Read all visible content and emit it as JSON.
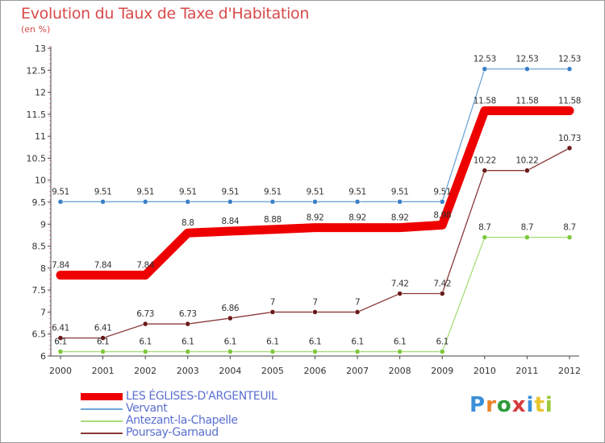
{
  "title": "Evolution du Taux de Taxe d'Habitation",
  "subtitle": "(en %)",
  "logo": {
    "text": "Proxiti",
    "colors": [
      "#3a8fd8",
      "#e8852c",
      "#2f9a3c",
      "#d83a3a",
      "#3a8fd8",
      "#e8c52c",
      "#9ac83a"
    ]
  },
  "chart_data": {
    "type": "line",
    "title": "Evolution du Taux de Taxe d'Habitation",
    "ylabel": "(en %)",
    "xlabel": "",
    "x": [
      "2000",
      "2001",
      "2002",
      "2003",
      "2004",
      "2005",
      "2006",
      "2007",
      "2008",
      "2009",
      "2010",
      "2011",
      "2012"
    ],
    "ylim": [
      6,
      13
    ],
    "yticks": [
      "6",
      "6.5",
      "7",
      "7.5",
      "8",
      "8.5",
      "9",
      "9.5",
      "10",
      "10.5",
      "11",
      "11.5",
      "12",
      "12.5",
      "13"
    ],
    "grid": false,
    "legend_position": "bottom-left",
    "series": [
      {
        "name": "LES ÉGLISES-D'ARGENTEUIL",
        "color": "#ee0000",
        "style": "thick",
        "values": [
          7.84,
          7.84,
          7.84,
          8.8,
          8.84,
          8.88,
          8.92,
          8.92,
          8.92,
          8.98,
          11.58,
          11.58,
          11.58
        ],
        "labels": [
          "7.84",
          "7.84",
          "7.84",
          "8.8",
          "8.84",
          "8.88",
          "8.92",
          "8.92",
          "8.92",
          "8.98",
          "11.58",
          "11.58",
          "11.58"
        ]
      },
      {
        "name": "Vervant",
        "color": "#6ea6d8",
        "marker": "#3a80c8",
        "style": "thin",
        "values": [
          9.51,
          9.51,
          9.51,
          9.51,
          9.51,
          9.51,
          9.51,
          9.51,
          9.51,
          9.51,
          12.53,
          12.53,
          12.53
        ],
        "labels": [
          "9.51",
          "9.51",
          "9.51",
          "9.51",
          "9.51",
          "9.51",
          "9.51",
          "9.51",
          "9.51",
          "9.51",
          "12.53",
          "12.53",
          "12.53"
        ]
      },
      {
        "name": "Antezant-la-Chapelle",
        "color": "#a8dc78",
        "marker": "#7cc83a",
        "style": "thin",
        "values": [
          6.1,
          6.1,
          6.1,
          6.1,
          6.1,
          6.1,
          6.1,
          6.1,
          6.1,
          6.1,
          8.7,
          8.7,
          8.7
        ],
        "labels": [
          "6.1",
          "6.1",
          "6.1",
          "6.1",
          "6.1",
          "6.1",
          "6.1",
          "6.1",
          "6.1",
          "6.1",
          "8.7",
          "8.7",
          "8.7"
        ]
      },
      {
        "name": "Poursay-Garnaud",
        "color": "#8a3a3a",
        "marker": "#6a1a1a",
        "style": "thin",
        "values": [
          6.41,
          6.41,
          6.73,
          6.73,
          6.86,
          7,
          7,
          7,
          7.42,
          7.42,
          10.22,
          10.22,
          10.73
        ],
        "labels": [
          "6.41",
          "6.41",
          "6.73",
          "6.73",
          "6.86",
          "7",
          "7",
          "7",
          "7.42",
          "7.42",
          "10.22",
          "10.22",
          "10.73"
        ]
      }
    ]
  }
}
